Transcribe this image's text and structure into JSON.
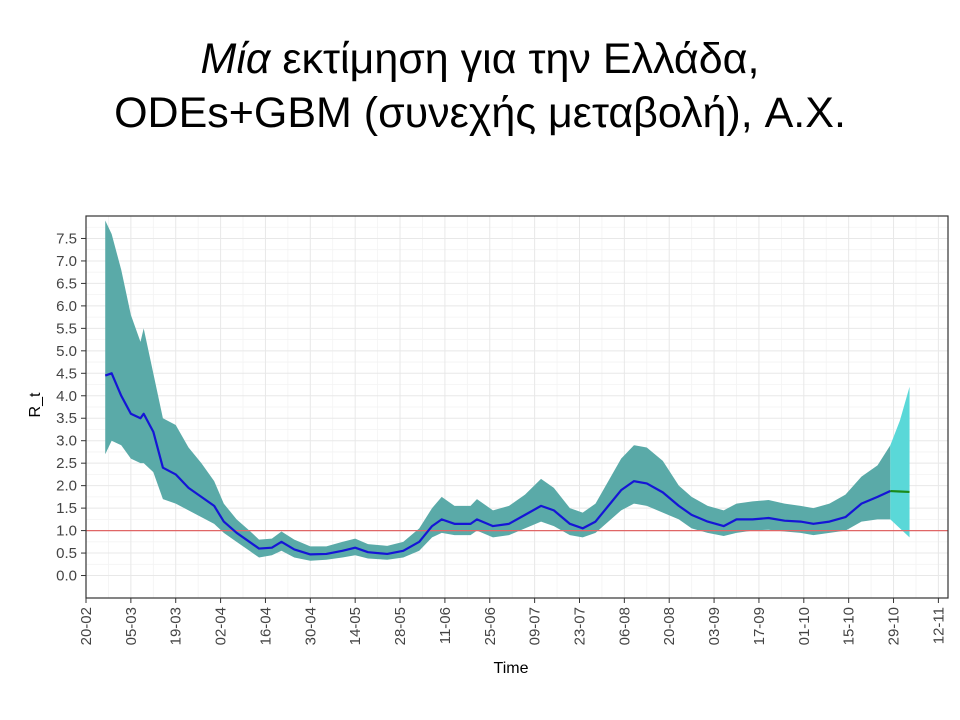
{
  "slide": {
    "title_italic": "Μία",
    "title_rest": " εκτίμηση για την Ελλάδα,",
    "title_line2": "ODEs+GBM (συνεχής μεταβολή), Α.Χ."
  },
  "chart_data": {
    "type": "line",
    "xlabel": "Time",
    "ylabel": "R_t",
    "x_start": "2020-02-20",
    "x_end": "2020-11-15",
    "y_range": [
      -0.5,
      8.0
    ],
    "x_ticks": [
      "20-02",
      "05-03",
      "19-03",
      "02-04",
      "16-04",
      "30-04",
      "14-05",
      "28-05",
      "11-06",
      "25-06",
      "09-07",
      "23-07",
      "06-08",
      "20-08",
      "03-09",
      "17-09",
      "01-10",
      "15-10",
      "29-10",
      "12-11"
    ],
    "y_ticks": [
      "0.0",
      "0.5",
      "1.0",
      "1.5",
      "2.0",
      "2.5",
      "3.0",
      "3.5",
      "4.0",
      "4.5",
      "5.0",
      "5.5",
      "6.0",
      "6.5",
      "7.0",
      "7.5"
    ],
    "grid": true,
    "reference_line": {
      "y": 1.0,
      "color": "#e06666"
    },
    "colors": {
      "estimate_line": "#1515d6",
      "estimate_band": "#5aaaa8",
      "forecast_line": "#1a8a1a",
      "forecast_band": "#5ad8d8",
      "panel_border": "#333333",
      "grid": "#e8e8e8"
    },
    "series": [
      {
        "role": "estimate",
        "points": [
          [
            "2020-02-26",
            4.45,
            2.7,
            7.9
          ],
          [
            "2020-02-28",
            4.5,
            3.0,
            7.6
          ],
          [
            "2020-03-02",
            4.0,
            2.9,
            6.8
          ],
          [
            "2020-03-05",
            3.6,
            2.6,
            5.8
          ],
          [
            "2020-03-08",
            3.5,
            2.5,
            5.2
          ],
          [
            "2020-03-09",
            3.6,
            2.5,
            5.5
          ],
          [
            "2020-03-12",
            3.2,
            2.3,
            4.5
          ],
          [
            "2020-03-15",
            2.4,
            1.7,
            3.5
          ],
          [
            "2020-03-19",
            2.25,
            1.6,
            3.35
          ],
          [
            "2020-03-23",
            1.95,
            1.45,
            2.85
          ],
          [
            "2020-03-27",
            1.75,
            1.3,
            2.5
          ],
          [
            "2020-03-31",
            1.55,
            1.15,
            2.1
          ],
          [
            "2020-04-03",
            1.2,
            0.95,
            1.6
          ],
          [
            "2020-04-07",
            0.95,
            0.75,
            1.25
          ],
          [
            "2020-04-11",
            0.75,
            0.55,
            1.0
          ],
          [
            "2020-04-14",
            0.6,
            0.4,
            0.8
          ],
          [
            "2020-04-18",
            0.62,
            0.45,
            0.82
          ],
          [
            "2020-04-21",
            0.75,
            0.55,
            0.98
          ],
          [
            "2020-04-25",
            0.58,
            0.4,
            0.8
          ],
          [
            "2020-04-30",
            0.47,
            0.33,
            0.65
          ],
          [
            "2020-05-05",
            0.48,
            0.35,
            0.65
          ],
          [
            "2020-05-10",
            0.55,
            0.4,
            0.75
          ],
          [
            "2020-05-14",
            0.62,
            0.45,
            0.82
          ],
          [
            "2020-05-18",
            0.52,
            0.38,
            0.7
          ],
          [
            "2020-05-24",
            0.48,
            0.35,
            0.66
          ],
          [
            "2020-05-29",
            0.55,
            0.4,
            0.75
          ],
          [
            "2020-06-03",
            0.75,
            0.55,
            1.05
          ],
          [
            "2020-06-07",
            1.1,
            0.85,
            1.5
          ],
          [
            "2020-06-10",
            1.25,
            0.95,
            1.75
          ],
          [
            "2020-06-14",
            1.15,
            0.9,
            1.55
          ],
          [
            "2020-06-19",
            1.15,
            0.9,
            1.55
          ],
          [
            "2020-06-21",
            1.25,
            1.0,
            1.7
          ],
          [
            "2020-06-26",
            1.1,
            0.85,
            1.45
          ],
          [
            "2020-07-01",
            1.15,
            0.9,
            1.55
          ],
          [
            "2020-07-06",
            1.35,
            1.05,
            1.8
          ],
          [
            "2020-07-11",
            1.55,
            1.2,
            2.15
          ],
          [
            "2020-07-15",
            1.45,
            1.1,
            1.95
          ],
          [
            "2020-07-20",
            1.15,
            0.9,
            1.5
          ],
          [
            "2020-07-24",
            1.05,
            0.85,
            1.4
          ],
          [
            "2020-07-28",
            1.2,
            0.95,
            1.6
          ],
          [
            "2020-08-01",
            1.55,
            1.2,
            2.1
          ],
          [
            "2020-08-05",
            1.9,
            1.45,
            2.6
          ],
          [
            "2020-08-09",
            2.1,
            1.6,
            2.9
          ],
          [
            "2020-08-13",
            2.05,
            1.55,
            2.85
          ],
          [
            "2020-08-18",
            1.85,
            1.4,
            2.55
          ],
          [
            "2020-08-23",
            1.55,
            1.25,
            2.0
          ],
          [
            "2020-08-27",
            1.35,
            1.05,
            1.75
          ],
          [
            "2020-09-01",
            1.2,
            0.95,
            1.55
          ],
          [
            "2020-09-06",
            1.1,
            0.88,
            1.45
          ],
          [
            "2020-09-10",
            1.25,
            0.95,
            1.6
          ],
          [
            "2020-09-15",
            1.25,
            1.0,
            1.65
          ],
          [
            "2020-09-20",
            1.28,
            1.02,
            1.68
          ],
          [
            "2020-09-25",
            1.22,
            0.98,
            1.6
          ],
          [
            "2020-09-30",
            1.2,
            0.95,
            1.55
          ],
          [
            "2020-10-04",
            1.15,
            0.9,
            1.5
          ],
          [
            "2020-10-09",
            1.2,
            0.95,
            1.6
          ],
          [
            "2020-10-14",
            1.3,
            1.0,
            1.8
          ],
          [
            "2020-10-19",
            1.6,
            1.2,
            2.2
          ],
          [
            "2020-10-24",
            1.75,
            1.25,
            2.45
          ],
          [
            "2020-10-28",
            1.88,
            1.25,
            2.9
          ]
        ]
      },
      {
        "role": "forecast",
        "points": [
          [
            "2020-10-28",
            1.88,
            1.25,
            2.9
          ],
          [
            "2020-10-31",
            1.87,
            1.05,
            3.45
          ],
          [
            "2020-11-03",
            1.86,
            0.85,
            4.2
          ]
        ]
      }
    ]
  }
}
